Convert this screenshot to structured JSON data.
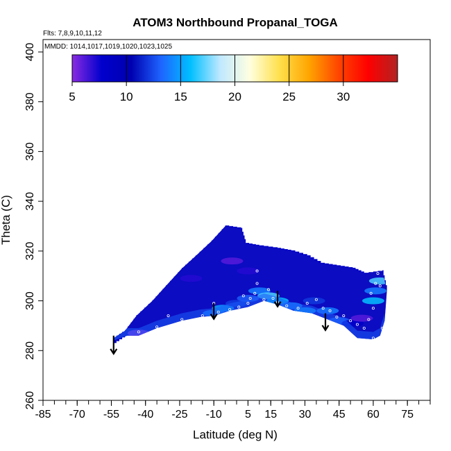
{
  "chart_data": {
    "type": "heatmap",
    "title": "ATOM3 Northbound Propanal_TOGA",
    "flights_note": "Flts: 7,8,9,10,11,12",
    "dates_note": "MMDD: 1014,1017,1019,1020,1023,1025",
    "xlabel": "Latitude (deg N)",
    "ylabel": "Theta (C)",
    "xlim": [
      -85,
      85
    ],
    "ylim": [
      260,
      405
    ],
    "x_ticks": [
      -85,
      -70,
      -55,
      -40,
      -25,
      -10,
      5,
      15,
      30,
      45,
      60,
      75
    ],
    "x_tick_labels": [
      "-85",
      "-70",
      "-55",
      "-40",
      "-25",
      "-10",
      "5",
      "15",
      "30",
      "45",
      "60",
      "75"
    ],
    "y_ticks": [
      260,
      280,
      300,
      320,
      340,
      360,
      380,
      400
    ],
    "y_tick_labels": [
      "260",
      "280",
      "300",
      "320",
      "340",
      "360",
      "380",
      "400"
    ],
    "colorbar": {
      "min": 5,
      "max": 35,
      "ticks": [
        5,
        10,
        15,
        20,
        25,
        30
      ],
      "tick_labels": [
        "5",
        "10",
        "15",
        "20",
        "25",
        "30"
      ],
      "colors": [
        "#8a2be2",
        "#0000cc",
        "#0000b0",
        "#1e64ff",
        "#00bfff",
        "#bfe8ff",
        "#ffffe0",
        "#ffe04d",
        "#ffa500",
        "#ff4500",
        "#ff0000",
        "#b22222"
      ]
    },
    "region_lower_boundary": [
      [
        -54,
        284
      ],
      [
        -48,
        286
      ],
      [
        -43,
        286
      ],
      [
        -35,
        289
      ],
      [
        -24,
        292
      ],
      [
        -16,
        293.5
      ],
      [
        -10,
        294
      ],
      [
        -3,
        296
      ],
      [
        5,
        297.5
      ],
      [
        12,
        300
      ],
      [
        18,
        298.5
      ],
      [
        25,
        296
      ],
      [
        33,
        295
      ],
      [
        40,
        292.5
      ],
      [
        47,
        290
      ],
      [
        53,
        285
      ],
      [
        60,
        284.5
      ],
      [
        63,
        286
      ],
      [
        65,
        292
      ]
    ],
    "region_upper_boundary": [
      [
        -54,
        285
      ],
      [
        -49,
        288
      ],
      [
        -44,
        294
      ],
      [
        -37,
        300
      ],
      [
        -31,
        306
      ],
      [
        -24,
        313
      ],
      [
        -18,
        318
      ],
      [
        -11,
        324
      ],
      [
        -5,
        330
      ],
      [
        2,
        329
      ],
      [
        4,
        323
      ],
      [
        10,
        322
      ],
      [
        18,
        321
      ],
      [
        24,
        320
      ],
      [
        31,
        318
      ],
      [
        37,
        315
      ],
      [
        44,
        314
      ],
      [
        51,
        313
      ],
      [
        56,
        311
      ],
      [
        64,
        312
      ],
      [
        66,
        304
      ]
    ],
    "patches": [
      {
        "lat": -43,
        "theta": 287,
        "value": 4
      },
      {
        "lat": -10,
        "theta": 295,
        "value": 14
      },
      {
        "lat": -6,
        "theta": 297,
        "value": 15
      },
      {
        "lat": 0,
        "theta": 299,
        "value": 12
      },
      {
        "lat": 5,
        "theta": 301,
        "value": 13
      },
      {
        "lat": 10,
        "theta": 304,
        "value": 14
      },
      {
        "lat": 14,
        "theta": 302,
        "value": 17
      },
      {
        "lat": 18,
        "theta": 300,
        "value": 16
      },
      {
        "lat": 24,
        "theta": 298,
        "value": 14
      },
      {
        "lat": 30,
        "theta": 296,
        "value": 15
      },
      {
        "lat": 34,
        "theta": 300,
        "value": 12
      },
      {
        "lat": 40,
        "theta": 296,
        "value": 14
      },
      {
        "lat": 45,
        "theta": 292,
        "value": 13
      },
      {
        "lat": 51,
        "theta": 291,
        "value": 8
      },
      {
        "lat": 55,
        "theta": 293,
        "value": 6
      },
      {
        "lat": 60,
        "theta": 300,
        "value": 16
      },
      {
        "lat": 61,
        "theta": 304,
        "value": 14
      },
      {
        "lat": 63,
        "theta": 308,
        "value": 17
      },
      {
        "lat": 5,
        "theta": 312,
        "value": 7
      },
      {
        "lat": -2,
        "theta": 316,
        "value": 6
      },
      {
        "lat": -20,
        "theta": 309,
        "value": 7
      }
    ],
    "samples": [
      [
        -43,
        287.5
      ],
      [
        -35,
        289.5
      ],
      [
        -24,
        292.5
      ],
      [
        -15,
        294
      ],
      [
        -8,
        295.5
      ],
      [
        -3,
        296.5
      ],
      [
        1,
        297.5
      ],
      [
        5,
        299
      ],
      [
        8,
        303
      ],
      [
        9,
        312
      ],
      [
        9,
        307
      ],
      [
        12,
        300.5
      ],
      [
        12,
        298.5
      ],
      [
        14,
        304.5
      ],
      [
        16,
        301
      ],
      [
        18,
        299.5
      ],
      [
        22,
        298
      ],
      [
        27,
        297
      ],
      [
        31,
        299
      ],
      [
        35,
        300.5
      ],
      [
        38,
        297
      ],
      [
        41,
        296
      ],
      [
        44,
        293.5
      ],
      [
        47,
        294
      ],
      [
        50,
        292
      ],
      [
        53,
        290.5
      ],
      [
        56,
        289
      ],
      [
        58,
        292.5
      ],
      [
        59,
        303
      ],
      [
        60,
        297
      ],
      [
        60,
        285
      ],
      [
        61,
        307
      ],
      [
        62,
        311
      ],
      [
        63,
        306
      ],
      [
        64,
        289
      ],
      [
        3,
        302
      ],
      [
        6,
        301
      ],
      [
        -10,
        299
      ],
      [
        -30,
        294
      ]
    ],
    "arrows": [
      {
        "lat": -54,
        "theta_top": 286,
        "theta_bottom": 279
      },
      {
        "lat": -10,
        "theta_top": 299,
        "theta_bottom": 293
      },
      {
        "lat": 18,
        "theta_top": 304,
        "theta_bottom": 298
      },
      {
        "lat": 39,
        "theta_top": 295,
        "theta_bottom": 288.5
      }
    ]
  }
}
